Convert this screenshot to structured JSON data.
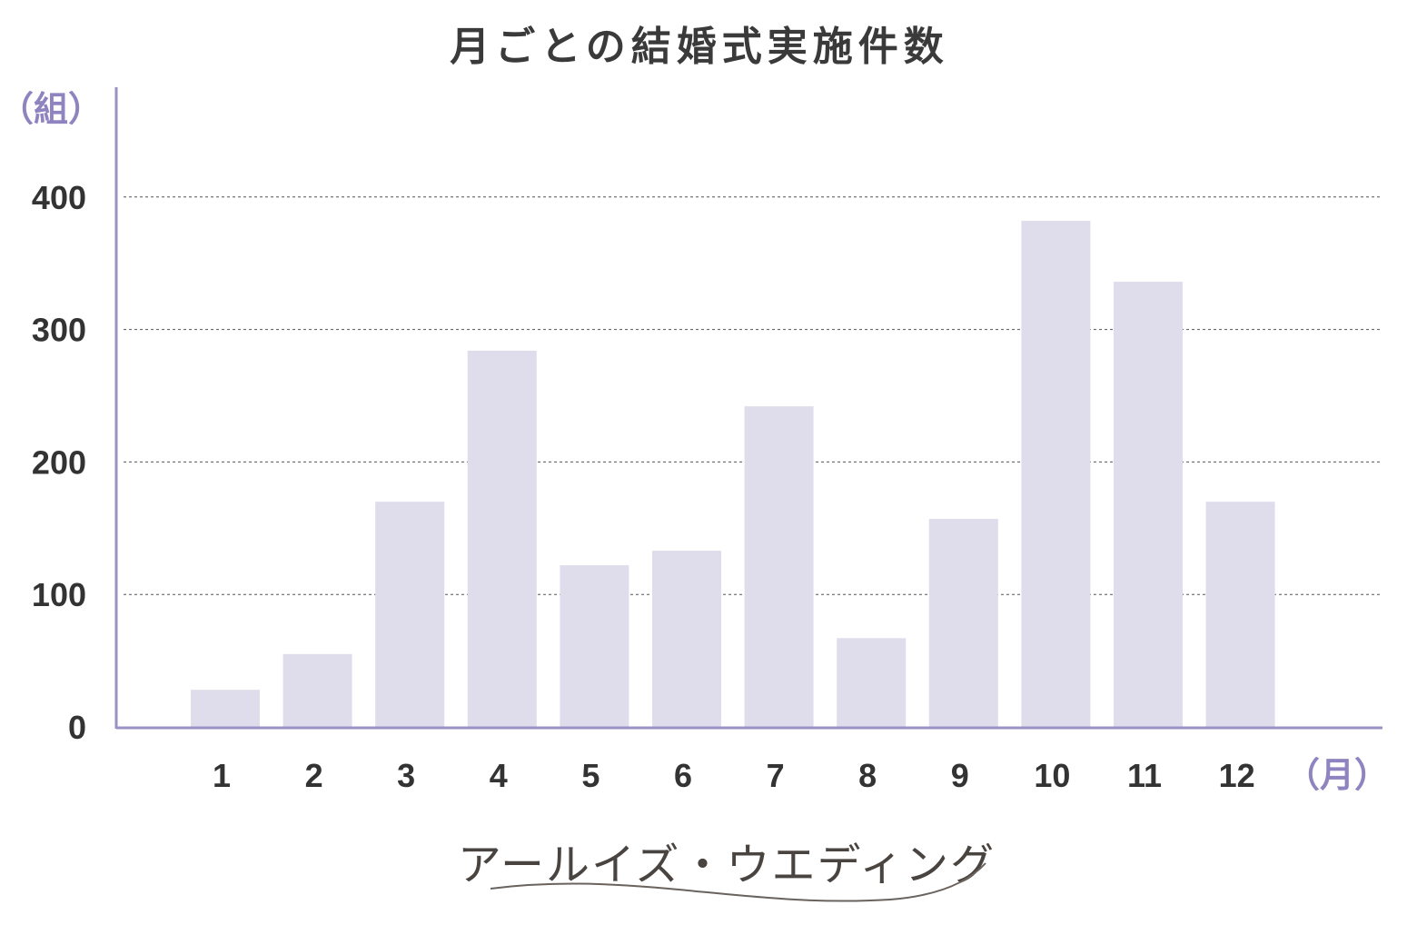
{
  "chart_data": {
    "type": "bar",
    "title": "月ごとの結婚式実施件数",
    "y_unit": "（組）",
    "x_unit": "（月）",
    "categories": [
      "1",
      "2",
      "3",
      "4",
      "5",
      "6",
      "7",
      "8",
      "9",
      "10",
      "11",
      "12"
    ],
    "values": [
      28,
      55,
      170,
      284,
      122,
      133,
      242,
      67,
      157,
      382,
      336,
      170
    ],
    "ylim": [
      0,
      470
    ],
    "yticks": [
      0,
      100,
      200,
      300,
      400
    ],
    "grid": "horizontal-dotted",
    "legend": "none"
  },
  "colors": {
    "bar": "#dfdcec",
    "axis": "#9b90c6",
    "unit": "#8f84bf",
    "grid": "#555555",
    "tick": "#333333",
    "title": "#3a3a3a"
  },
  "logo": {
    "text": "アールイズ・ウエディング"
  }
}
